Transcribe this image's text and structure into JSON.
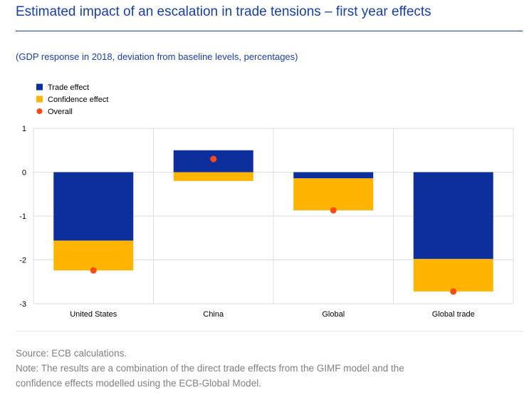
{
  "title": "Estimated impact of an escalation in trade tensions – first year effects",
  "subtitle": "(GDP response in 2018, deviation from baseline levels, percentages)",
  "source": "Source: ECB calculations.",
  "note_line1": "Note: The results are a combination of the direct trade effects from the GIMF model and the",
  "note_line2": "confidence effects modelled using the ECB-Global Model.",
  "colors": {
    "title": "#1a3ea8",
    "trade": "#0d2f9e",
    "confidence": "#ffb400",
    "overall": "#ff4b12",
    "grid": "#dedede",
    "footnote": "#808080"
  },
  "chart_data": {
    "type": "bar",
    "stacked": true,
    "categories": [
      "United States",
      "China",
      "Global",
      "Global trade"
    ],
    "series": [
      {
        "name": "Trade effect",
        "kind": "bar",
        "values": [
          -1.56,
          0.5,
          -0.14,
          -1.98
        ]
      },
      {
        "name": "Confidence effect",
        "kind": "bar",
        "values": [
          -0.68,
          -0.2,
          -0.73,
          -0.74
        ]
      },
      {
        "name": "Overall",
        "kind": "marker",
        "values": [
          -2.24,
          0.3,
          -0.87,
          -2.72
        ]
      }
    ],
    "yticks": [
      "1",
      "0",
      "-1",
      "-2",
      "-3"
    ],
    "ylim": [
      -3,
      1
    ],
    "grid": true,
    "legend": "top-left"
  }
}
